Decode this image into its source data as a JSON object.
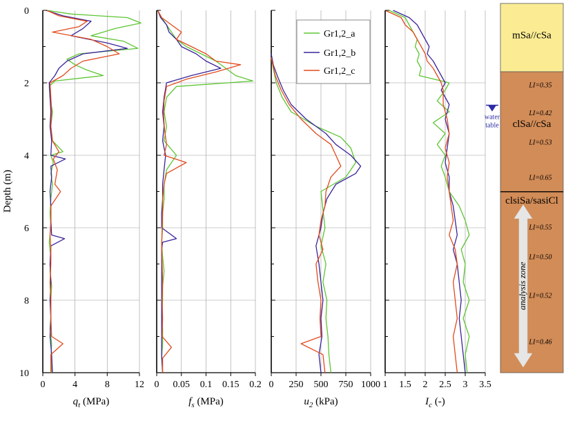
{
  "yaxis": {
    "label": "Depth (m)",
    "ticks": [
      "0",
      "2",
      "4",
      "6",
      "8",
      "10"
    ]
  },
  "panels": [
    {
      "xsym": "q",
      "xsub": "t",
      "xunit": " (MPa)",
      "ticks": [
        "0",
        "4",
        "8",
        "12"
      ]
    },
    {
      "xsym": "f",
      "xsub": "s",
      "xunit": " (MPa)",
      "ticks": [
        "0",
        "0.05",
        "0.1",
        "0.15",
        "0.2"
      ]
    },
    {
      "xsym": "u",
      "xsub": "2",
      "xunit": " (kPa)",
      "ticks": [
        "0",
        "250",
        "500",
        "750",
        "1000"
      ]
    },
    {
      "xsym": "I",
      "xsub": "c",
      "xunit": " (-)",
      "ticks": [
        "1",
        "1.5",
        "2",
        "2.5",
        "3",
        "3.5"
      ]
    }
  ],
  "legend": [
    "Gr1,2_a",
    "Gr1,2_b",
    "Gr1,2_c"
  ],
  "colors": {
    "a": "#5cc531",
    "b": "#3a2499",
    "c": "#e24a1c",
    "sand": "#fbec94",
    "clay": "#d28c57",
    "water": "#2b2ba6",
    "arrow": "#e6e6e6"
  },
  "column": {
    "layers": [
      {
        "top": 0,
        "bottom": 1.85,
        "type": "sand"
      },
      {
        "top": 1.85,
        "bottom": 5.1,
        "type": "clay"
      },
      {
        "top": 5.1,
        "bottom": 10,
        "type": "clay"
      }
    ],
    "labels": [
      {
        "text": "mSa//cSa",
        "depth": 0.85
      },
      {
        "text": "clSa//cSa",
        "depth": 3.25
      },
      {
        "text": "clsiSa/sasiCl",
        "depth": 5.2
      }
    ],
    "li": [
      {
        "text": "LI=0.35",
        "depth": 2.2
      },
      {
        "text": "LI=0.42",
        "depth": 2.95
      },
      {
        "text": "LI=0.53",
        "depth": 3.75
      },
      {
        "text": "LI=0.65",
        "depth": 4.7
      },
      {
        "text": "LI=0.55",
        "depth": 6.05
      },
      {
        "text": "LI=0.50",
        "depth": 6.85
      },
      {
        "text": "LI=0.52",
        "depth": 7.9
      },
      {
        "text": "LI=0.46",
        "depth": 9.15
      }
    ],
    "water_table": {
      "depth": 2.85,
      "line1": "water",
      "line2": "table"
    },
    "analysis_zone": {
      "label": "analysis zone",
      "top": 5.45,
      "bottom": 9.85
    }
  },
  "chart_data": [
    {
      "type": "line",
      "xlabel": "qt (MPa)",
      "ylabel": "Depth (m)",
      "xlim": [
        0,
        12
      ],
      "ylim": [
        10,
        0
      ],
      "grid": true,
      "series": [
        {
          "name": "Gr1,2_a",
          "depth": [
            0,
            0.1,
            0.2,
            0.35,
            0.5,
            0.7,
            0.85,
            1.05,
            1.2,
            1.35,
            1.5,
            1.65,
            1.8,
            1.95,
            2.1,
            2.4,
            2.8,
            3.2,
            3.6,
            3.9,
            4.0,
            4.2,
            4.5,
            4.8,
            5.2,
            5.6,
            6.0,
            6.4,
            6.8,
            7.2,
            7.6,
            8.0,
            8.4,
            8.8,
            9.2,
            9.6,
            10
          ],
          "x": [
            0.5,
            3.5,
            10.5,
            12.2,
            9.0,
            6.0,
            10.0,
            11.8,
            4.5,
            3.0,
            4.0,
            5.5,
            7.5,
            1.5,
            0.8,
            0.9,
            1.2,
            1.0,
            1.2,
            2.5,
            1.0,
            1.3,
            1.0,
            1.2,
            1.0,
            0.9,
            1.0,
            0.8,
            1.0,
            0.9,
            1.1,
            1.0,
            1.0,
            0.9,
            1.1,
            1.0,
            1.1
          ]
        },
        {
          "name": "Gr1,2_b",
          "depth": [
            0,
            0.15,
            0.3,
            0.5,
            0.7,
            0.9,
            1.05,
            1.2,
            1.4,
            1.6,
            1.8,
            2.0,
            2.4,
            2.8,
            3.2,
            3.6,
            4.0,
            4.1,
            4.3,
            4.6,
            5.0,
            5.4,
            5.8,
            6.2,
            6.3,
            6.5,
            7.0,
            7.5,
            8.0,
            8.5,
            9.0,
            9.5,
            10
          ],
          "x": [
            0.4,
            2.5,
            6.0,
            5.0,
            3.5,
            8.0,
            10.5,
            5.0,
            3.0,
            2.0,
            1.5,
            0.8,
            0.9,
            1.0,
            0.9,
            1.1,
            1.0,
            2.8,
            1.0,
            1.1,
            0.9,
            1.0,
            1.0,
            1.1,
            2.7,
            1.0,
            0.9,
            1.0,
            0.9,
            1.0,
            0.9,
            1.1,
            1.2
          ]
        },
        {
          "name": "Gr1,2_c",
          "depth": [
            0,
            0.15,
            0.3,
            0.45,
            0.6,
            0.8,
            1.0,
            1.2,
            1.4,
            1.6,
            1.8,
            2.0,
            2.4,
            2.8,
            3.2,
            3.6,
            3.9,
            4.1,
            4.4,
            4.8,
            5.0,
            5.4,
            5.8,
            6.2,
            6.6,
            7.0,
            7.5,
            8.0,
            8.5,
            9.0,
            9.2,
            9.5,
            10
          ],
          "x": [
            0.5,
            2.0,
            5.5,
            4.5,
            1.2,
            6.0,
            8.0,
            9.5,
            5.0,
            3.5,
            2.5,
            0.9,
            1.0,
            1.1,
            1.0,
            1.2,
            2.0,
            1.3,
            1.8,
            1.5,
            2.2,
            1.0,
            1.0,
            0.9,
            1.0,
            1.0,
            0.9,
            1.0,
            1.0,
            1.1,
            2.5,
            1.0,
            1.0
          ]
        }
      ]
    },
    {
      "type": "line",
      "xlabel": "fs (MPa)",
      "ylabel": "Depth (m)",
      "xlim": [
        0,
        0.2
      ],
      "ylim": [
        10,
        0
      ],
      "grid": true,
      "series": [
        {
          "name": "Gr1,2_a",
          "depth": [
            0,
            0.2,
            0.4,
            0.6,
            0.8,
            1.0,
            1.2,
            1.4,
            1.6,
            1.8,
            1.95,
            2.1,
            2.4,
            2.8,
            3.2,
            3.6,
            4.0,
            4.4,
            4.8,
            5.2,
            5.6,
            6.0,
            6.4,
            6.8,
            7.2,
            7.6,
            8.0,
            8.4,
            8.8,
            9.2,
            9.6,
            10
          ],
          "x": [
            0.002,
            0.01,
            0.02,
            0.03,
            0.04,
            0.06,
            0.09,
            0.12,
            0.14,
            0.16,
            0.195,
            0.04,
            0.02,
            0.015,
            0.02,
            0.015,
            0.04,
            0.02,
            0.015,
            0.015,
            0.012,
            0.012,
            0.01,
            0.012,
            0.015,
            0.012,
            0.012,
            0.01,
            0.012,
            0.012,
            0.01,
            0.012
          ]
        },
        {
          "name": "Gr1,2_b",
          "depth": [
            0,
            0.2,
            0.4,
            0.6,
            0.8,
            1.0,
            1.2,
            1.4,
            1.6,
            1.8,
            2.0,
            2.4,
            2.8,
            3.2,
            3.6,
            4.0,
            4.4,
            4.8,
            5.2,
            5.6,
            6.0,
            6.3,
            6.4,
            6.6,
            7.0,
            7.5,
            8.0,
            8.5,
            9.0,
            9.5,
            10
          ],
          "x": [
            0.002,
            0.008,
            0.02,
            0.025,
            0.04,
            0.05,
            0.08,
            0.1,
            0.13,
            0.07,
            0.02,
            0.015,
            0.012,
            0.015,
            0.012,
            0.018,
            0.015,
            0.012,
            0.012,
            0.01,
            0.01,
            0.04,
            0.012,
            0.01,
            0.01,
            0.01,
            0.01,
            0.01,
            0.01,
            0.01,
            0.012
          ]
        },
        {
          "name": "Gr1,2_c",
          "depth": [
            0,
            0.2,
            0.4,
            0.6,
            0.8,
            1.0,
            1.2,
            1.4,
            1.5,
            1.7,
            1.9,
            2.1,
            2.5,
            2.9,
            3.3,
            3.7,
            4.0,
            4.2,
            4.5,
            4.8,
            5.2,
            5.6,
            6.0,
            6.5,
            7.0,
            7.5,
            8.0,
            8.5,
            9.0,
            9.3,
            9.6,
            10
          ],
          "x": [
            0.002,
            0.01,
            0.03,
            0.05,
            0.04,
            0.07,
            0.1,
            0.12,
            0.17,
            0.12,
            0.06,
            0.02,
            0.015,
            0.014,
            0.016,
            0.02,
            0.015,
            0.06,
            0.02,
            0.015,
            0.012,
            0.012,
            0.011,
            0.01,
            0.011,
            0.012,
            0.011,
            0.012,
            0.011,
            0.03,
            0.012,
            0.012
          ]
        }
      ]
    },
    {
      "type": "line",
      "xlabel": "u2 (kPa)",
      "ylabel": "Depth (m)",
      "xlim": [
        0,
        1000
      ],
      "ylim": [
        10,
        0
      ],
      "grid": true,
      "series": [
        {
          "name": "Gr1,2_a",
          "depth": [
            1.3,
            1.6,
            2.0,
            2.4,
            2.8,
            3.2,
            3.5,
            3.8,
            4.2,
            4.6,
            5.0,
            5.5,
            6.0,
            6.5,
            7.0,
            7.5,
            8.0,
            8.5,
            9.0,
            9.5,
            10
          ],
          "x": [
            0,
            20,
            50,
            110,
            200,
            450,
            700,
            800,
            850,
            750,
            500,
            520,
            540,
            500,
            550,
            520,
            560,
            550,
            570,
            580,
            600
          ]
        },
        {
          "name": "Gr1,2_b",
          "depth": [
            1.2,
            1.5,
            1.8,
            2.2,
            2.6,
            3.0,
            3.4,
            3.7,
            4.0,
            4.3,
            4.5,
            4.8,
            5.2,
            5.6,
            6.0,
            6.5,
            7.0,
            7.5,
            8.0,
            8.5,
            9.0,
            9.5,
            10
          ],
          "x": [
            0,
            20,
            60,
            120,
            200,
            350,
            550,
            650,
            800,
            900,
            850,
            650,
            560,
            520,
            500,
            450,
            480,
            500,
            520,
            500,
            510,
            480,
            500
          ]
        },
        {
          "name": "Gr1,2_c",
          "depth": [
            1.3,
            1.8,
            2.2,
            2.6,
            3.0,
            3.4,
            3.7,
            4.0,
            4.3,
            4.6,
            5.0,
            5.4,
            5.8,
            6.2,
            6.6,
            7.0,
            7.5,
            8.0,
            8.5,
            9.0,
            9.2,
            9.5,
            10
          ],
          "x": [
            0,
            40,
            100,
            180,
            300,
            450,
            600,
            650,
            700,
            600,
            550,
            540,
            500,
            480,
            520,
            450,
            470,
            500,
            490,
            500,
            300,
            520,
            540
          ]
        }
      ]
    },
    {
      "type": "line",
      "xlabel": "Ic (-)",
      "ylabel": "Depth (m)",
      "xlim": [
        1,
        3.5
      ],
      "ylim": [
        10,
        0
      ],
      "grid": true,
      "series": [
        {
          "name": "Gr1,2_a",
          "depth": [
            0,
            0.2,
            0.4,
            0.6,
            0.8,
            1.0,
            1.2,
            1.4,
            1.6,
            1.8,
            2.0,
            2.2,
            2.5,
            2.8,
            3.1,
            3.4,
            3.7,
            4.0,
            4.3,
            4.6,
            5.0,
            5.4,
            5.8,
            6.2,
            6.6,
            7.0,
            7.5,
            8.0,
            8.5,
            9.0,
            9.5,
            10
          ],
          "x": [
            1.1,
            1.5,
            1.6,
            1.7,
            1.8,
            1.75,
            1.85,
            1.8,
            1.9,
            1.85,
            2.6,
            2.5,
            2.3,
            2.6,
            2.2,
            2.5,
            2.3,
            2.5,
            2.4,
            2.5,
            2.6,
            2.85,
            3.0,
            3.1,
            2.9,
            3.0,
            2.95,
            3.1,
            2.95,
            3.1,
            3.0,
            3.05
          ]
        },
        {
          "name": "Gr1,2_b",
          "depth": [
            0,
            0.2,
            0.4,
            0.6,
            0.8,
            1.0,
            1.2,
            1.4,
            1.6,
            1.8,
            2.0,
            2.2,
            2.6,
            3.0,
            3.4,
            3.8,
            4.2,
            4.6,
            5.0,
            5.4,
            5.8,
            6.2,
            6.6,
            7.0,
            7.5,
            8.0,
            8.5,
            9.0,
            9.5,
            10
          ],
          "x": [
            1.2,
            1.6,
            1.8,
            1.9,
            2.0,
            2.1,
            2.05,
            2.2,
            2.3,
            2.4,
            2.5,
            2.4,
            2.6,
            2.5,
            2.6,
            2.55,
            2.5,
            2.6,
            2.6,
            2.7,
            2.75,
            2.8,
            2.7,
            2.8,
            2.85,
            2.9,
            2.85,
            2.9,
            2.95,
            3.0
          ]
        },
        {
          "name": "Gr1,2_c",
          "depth": [
            0,
            0.2,
            0.4,
            0.6,
            0.8,
            1.0,
            1.2,
            1.4,
            1.6,
            1.8,
            2.0,
            2.2,
            2.6,
            3.0,
            3.4,
            3.8,
            4.2,
            4.6,
            5.0,
            5.4,
            5.8,
            6.2,
            6.6,
            7.0,
            7.5,
            8.0,
            8.5,
            9.0,
            9.5,
            10
          ],
          "x": [
            1.0,
            1.4,
            1.5,
            1.7,
            1.8,
            1.9,
            2.0,
            2.05,
            2.2,
            2.3,
            2.4,
            2.45,
            2.45,
            2.55,
            2.6,
            2.5,
            2.6,
            2.55,
            2.6,
            2.65,
            2.7,
            2.6,
            2.75,
            2.8,
            2.7,
            2.75,
            2.8,
            2.7,
            2.75,
            2.8
          ]
        }
      ]
    }
  ]
}
